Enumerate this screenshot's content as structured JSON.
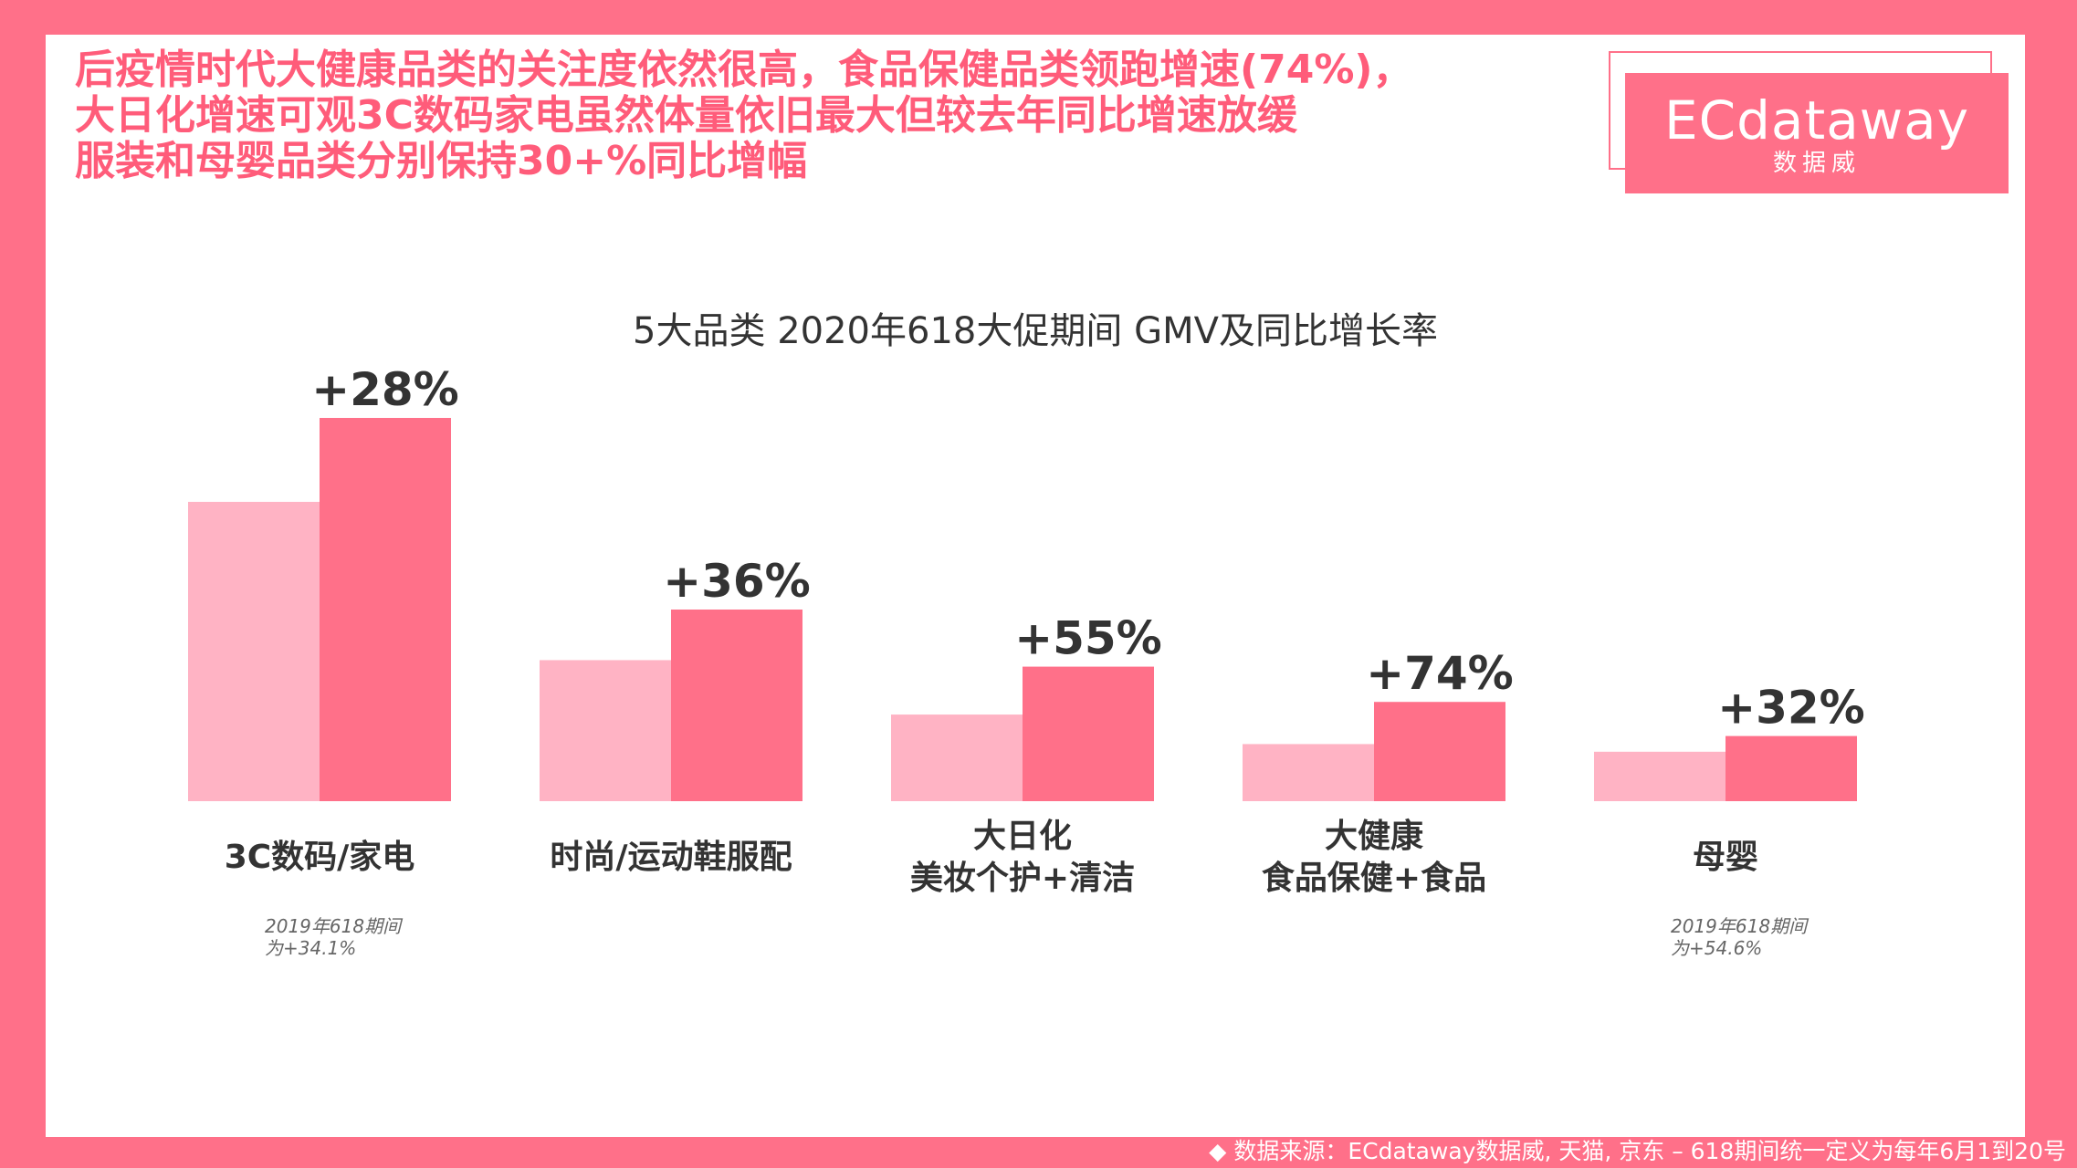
{
  "headline": {
    "line1": "后疫情时代大健康品类的关注度依然很高，食品保健品类领跑增速(74%)，",
    "line2": "大日化增速可观3C数码家电虽然体量依旧最大但较去年同比增速放缓",
    "line3": "服装和母婴品类分别保持30+%同比增幅"
  },
  "logo": {
    "brand": "ECdataway",
    "sub": "数据威"
  },
  "footer": "◆ 数据来源：ECdataway数据威, 天猫, 京东 – 618期间统一定义为每年6月1到20号",
  "colors": {
    "background": "#ff7089",
    "bar_2019": "#ffb3c4",
    "bar_2020": "#ff7089",
    "headline": "#ff5c7a",
    "text": "#333333",
    "note": "#666666"
  },
  "chart_data": {
    "type": "bar",
    "title": "5大品类 2020年618大促期间 GMV及同比增长率",
    "categories": [
      {
        "lines": [
          "3C数码/家电"
        ],
        "note": [
          "2019年618期间",
          "为+34.1%"
        ]
      },
      {
        "lines": [
          "时尚/运动鞋服配"
        ],
        "note": []
      },
      {
        "lines": [
          "大日化",
          "美妆个护+清洁"
        ],
        "note": []
      },
      {
        "lines": [
          "大健康",
          "食品保健+食品"
        ],
        "note": []
      },
      {
        "lines": [
          "母婴"
        ],
        "note": [
          "2019年618期间",
          "为+54.6%"
        ]
      }
    ],
    "series": [
      {
        "values": [
          78.1,
          36.8,
          22.6,
          14.9,
          12.9
        ]
      },
      {
        "values": [
          100,
          50.0,
          35.1,
          25.9,
          17.0
        ]
      }
    ],
    "growth_labels": [
      "+28%",
      "+36%",
      "+55%",
      "+74%",
      "+32%"
    ],
    "ylim": [
      0,
      100
    ],
    "grid": false,
    "legend": "none"
  }
}
